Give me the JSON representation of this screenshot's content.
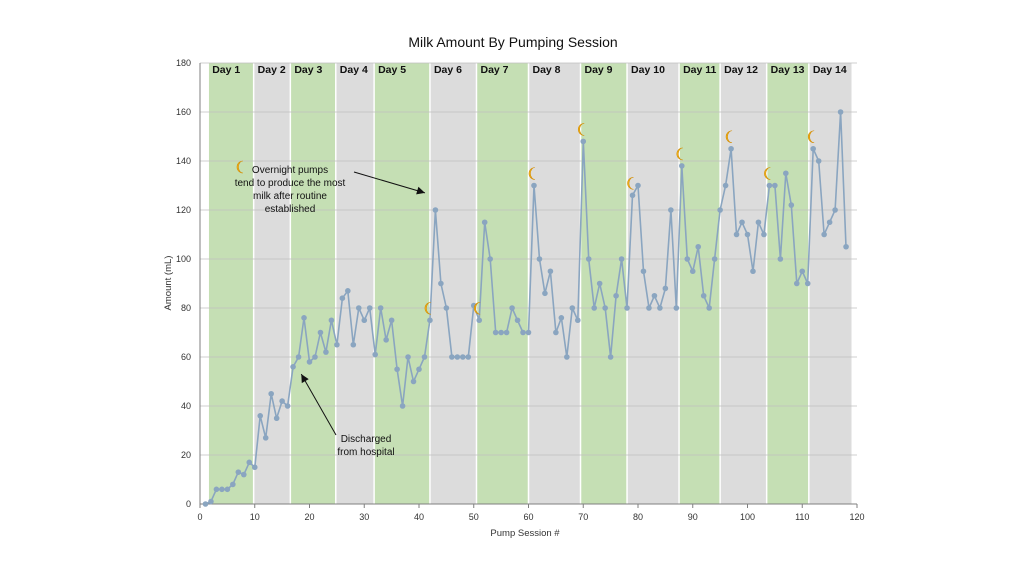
{
  "chart_data": {
    "type": "line",
    "title": "Milk Amount By Pumping Session",
    "xlabel": "Pump Session #",
    "ylabel": "Amount (mL)",
    "xlim": [
      0,
      120
    ],
    "ylim": [
      0,
      180
    ],
    "x_ticks": [
      0,
      10,
      20,
      30,
      40,
      50,
      60,
      70,
      80,
      90,
      100,
      110,
      120
    ],
    "y_ticks": [
      0,
      20,
      40,
      60,
      80,
      100,
      120,
      140,
      160,
      180
    ],
    "grid": "horizontal",
    "line_color": "#8aa5c0",
    "marker_color": "#8aa5c0",
    "day_bands": [
      {
        "label": "Day 1",
        "start": 1.5,
        "end": 9.8,
        "color": "#c5dfb4"
      },
      {
        "label": "Day 2",
        "start": 9.8,
        "end": 16.5,
        "color": "#dcdcdc"
      },
      {
        "label": "Day 3",
        "start": 16.5,
        "end": 24.8,
        "color": "#c5dfb4"
      },
      {
        "label": "Day 4",
        "start": 24.8,
        "end": 31.8,
        "color": "#dcdcdc"
      },
      {
        "label": "Day 5",
        "start": 31.8,
        "end": 42,
        "color": "#c5dfb4"
      },
      {
        "label": "Day 6",
        "start": 42,
        "end": 50.5,
        "color": "#dcdcdc"
      },
      {
        "label": "Day 7",
        "start": 50.5,
        "end": 60,
        "color": "#c5dfb4"
      },
      {
        "label": "Day 8",
        "start": 60,
        "end": 69.5,
        "color": "#dcdcdc"
      },
      {
        "label": "Day 9",
        "start": 69.5,
        "end": 78,
        "color": "#c5dfb4"
      },
      {
        "label": "Day 10",
        "start": 78,
        "end": 87.5,
        "color": "#dcdcdc"
      },
      {
        "label": "Day 11",
        "start": 87.5,
        "end": 95,
        "color": "#c5dfb4"
      },
      {
        "label": "Day 12",
        "start": 95,
        "end": 103.5,
        "color": "#dcdcdc"
      },
      {
        "label": "Day 13",
        "start": 103.5,
        "end": 111.2,
        "color": "#c5dfb4"
      },
      {
        "label": "Day 14",
        "start": 111.2,
        "end": 119,
        "color": "#dcdcdc"
      }
    ],
    "series": [
      {
        "x": [
          1,
          2,
          3,
          4,
          5,
          6,
          7,
          8,
          9,
          10,
          11,
          12,
          13,
          14,
          15,
          16,
          17,
          18,
          19,
          20,
          21,
          22,
          23,
          24,
          25,
          26,
          27,
          28,
          29,
          30,
          31,
          32,
          33,
          34,
          35,
          36,
          37,
          38,
          39,
          40,
          41,
          42,
          43,
          44,
          45,
          46,
          47,
          48,
          49,
          50,
          51,
          52,
          53,
          54,
          55,
          56,
          57,
          58,
          59,
          60,
          61,
          62,
          63,
          64,
          65,
          66,
          67,
          68,
          69,
          70,
          71,
          72,
          73,
          74,
          75,
          76,
          77,
          78,
          79,
          80,
          81,
          82,
          83,
          84,
          85,
          86,
          87,
          88,
          89,
          90,
          91,
          92,
          93,
          94,
          95,
          96,
          97,
          98,
          99,
          100,
          101,
          102,
          103,
          104,
          105,
          106,
          107,
          108,
          109,
          110,
          111,
          112,
          113,
          114,
          115,
          116,
          117,
          118
        ],
        "y": [
          0,
          1,
          6,
          6,
          6,
          8,
          13,
          12,
          17,
          15,
          36,
          27,
          45,
          35,
          42,
          40,
          56,
          60,
          76,
          58,
          60,
          70,
          62,
          75,
          65,
          84,
          87,
          65,
          80,
          75,
          80,
          61,
          80,
          67,
          75,
          55,
          40,
          60,
          50,
          55,
          60,
          75,
          120,
          90,
          80,
          60,
          60,
          60,
          60,
          81,
          75,
          115,
          100,
          70,
          70,
          70,
          80,
          75,
          70,
          70,
          130,
          100,
          86,
          95,
          70,
          76,
          60,
          80,
          75,
          148,
          100,
          80,
          90,
          80,
          60,
          85,
          100,
          80,
          126,
          130,
          95,
          80,
          85,
          80,
          88,
          120,
          80,
          138,
          100,
          95,
          105,
          85,
          80,
          100,
          120,
          130,
          145,
          110,
          115,
          110,
          95,
          115,
          110,
          130,
          130,
          100,
          135,
          122,
          90,
          95,
          90,
          145,
          140,
          110,
          115,
          120,
          160,
          105
        ]
      }
    ],
    "moon_sessions": [
      42,
      51,
      61,
      70,
      79,
      88,
      97,
      104,
      112
    ],
    "annotations": [
      {
        "lines": [
          "Overnight pumps",
          "tend to produce the most",
          "milk after routine",
          "established"
        ],
        "target": {
          "x": 42,
          "y": 127
        }
      },
      {
        "lines": [
          "Discharged",
          "from hospital"
        ],
        "target": {
          "x": 18.5,
          "y": 53
        }
      }
    ]
  }
}
